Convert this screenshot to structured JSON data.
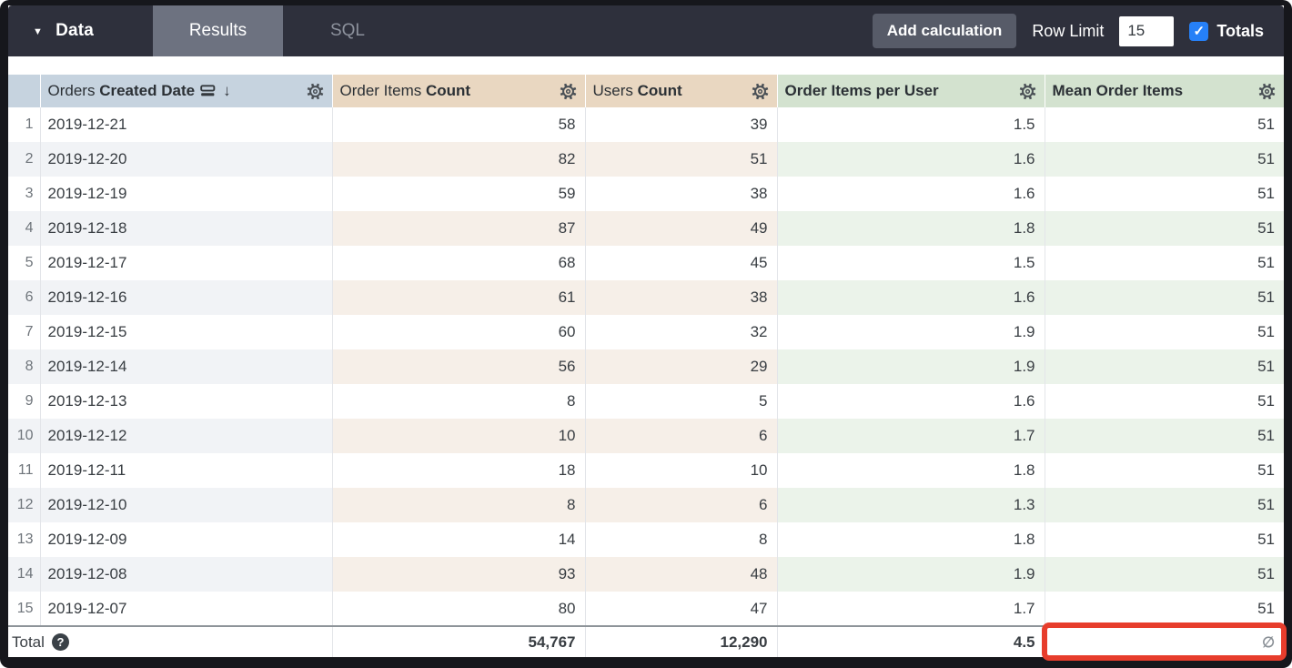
{
  "toolbar": {
    "data_label": "Data",
    "tabs": [
      {
        "label": "Results",
        "active": true
      },
      {
        "label": "SQL",
        "active": false
      }
    ],
    "add_calculation_label": "Add calculation",
    "row_limit_label": "Row Limit",
    "row_limit_value": "15",
    "totals_label": "Totals",
    "totals_checked": true
  },
  "icons": {
    "caret": "▼",
    "sort_arrow": "↓",
    "check": "✓",
    "help": "?"
  },
  "table": {
    "columns": [
      {
        "label_normal": "Orders ",
        "label_bold": "Created Date",
        "type": "dimension",
        "sorted": "desc"
      },
      {
        "label_normal": "Order Items ",
        "label_bold": "Count",
        "type": "measure"
      },
      {
        "label_normal": "Users ",
        "label_bold": "Count",
        "type": "measure"
      },
      {
        "label_normal": "",
        "label_bold": "Order Items per User",
        "type": "table-calculation"
      },
      {
        "label_normal": "",
        "label_bold": "Mean Order Items",
        "type": "table-calculation"
      }
    ],
    "rows": [
      {
        "n": "1",
        "date": "2019-12-21",
        "order_items_count": "58",
        "users_count": "39",
        "order_items_per_user": "1.5",
        "mean_order_items": "51"
      },
      {
        "n": "2",
        "date": "2019-12-20",
        "order_items_count": "82",
        "users_count": "51",
        "order_items_per_user": "1.6",
        "mean_order_items": "51"
      },
      {
        "n": "3",
        "date": "2019-12-19",
        "order_items_count": "59",
        "users_count": "38",
        "order_items_per_user": "1.6",
        "mean_order_items": "51"
      },
      {
        "n": "4",
        "date": "2019-12-18",
        "order_items_count": "87",
        "users_count": "49",
        "order_items_per_user": "1.8",
        "mean_order_items": "51"
      },
      {
        "n": "5",
        "date": "2019-12-17",
        "order_items_count": "68",
        "users_count": "45",
        "order_items_per_user": "1.5",
        "mean_order_items": "51"
      },
      {
        "n": "6",
        "date": "2019-12-16",
        "order_items_count": "61",
        "users_count": "38",
        "order_items_per_user": "1.6",
        "mean_order_items": "51"
      },
      {
        "n": "7",
        "date": "2019-12-15",
        "order_items_count": "60",
        "users_count": "32",
        "order_items_per_user": "1.9",
        "mean_order_items": "51"
      },
      {
        "n": "8",
        "date": "2019-12-14",
        "order_items_count": "56",
        "users_count": "29",
        "order_items_per_user": "1.9",
        "mean_order_items": "51"
      },
      {
        "n": "9",
        "date": "2019-12-13",
        "order_items_count": "8",
        "users_count": "5",
        "order_items_per_user": "1.6",
        "mean_order_items": "51"
      },
      {
        "n": "10",
        "date": "2019-12-12",
        "order_items_count": "10",
        "users_count": "6",
        "order_items_per_user": "1.7",
        "mean_order_items": "51"
      },
      {
        "n": "11",
        "date": "2019-12-11",
        "order_items_count": "18",
        "users_count": "10",
        "order_items_per_user": "1.8",
        "mean_order_items": "51"
      },
      {
        "n": "12",
        "date": "2019-12-10",
        "order_items_count": "8",
        "users_count": "6",
        "order_items_per_user": "1.3",
        "mean_order_items": "51"
      },
      {
        "n": "13",
        "date": "2019-12-09",
        "order_items_count": "14",
        "users_count": "8",
        "order_items_per_user": "1.8",
        "mean_order_items": "51"
      },
      {
        "n": "14",
        "date": "2019-12-08",
        "order_items_count": "93",
        "users_count": "48",
        "order_items_per_user": "1.9",
        "mean_order_items": "51"
      },
      {
        "n": "15",
        "date": "2019-12-07",
        "order_items_count": "80",
        "users_count": "47",
        "order_items_per_user": "1.7",
        "mean_order_items": "51"
      }
    ],
    "total": {
      "label": "Total",
      "order_items_count": "54,767",
      "users_count": "12,290",
      "order_items_per_user": "4.5",
      "mean_order_items": "∅"
    }
  },
  "colors": {
    "topbar_bg": "#2e303c",
    "results_tab_bg": "#6d7280",
    "checkbox_blue": "#2680f7",
    "dimension_header": "#c6d3df",
    "measure_header": "#e9d7c1",
    "calculation_header": "#d3e2cf",
    "annotation_red": "#e73d2c"
  }
}
